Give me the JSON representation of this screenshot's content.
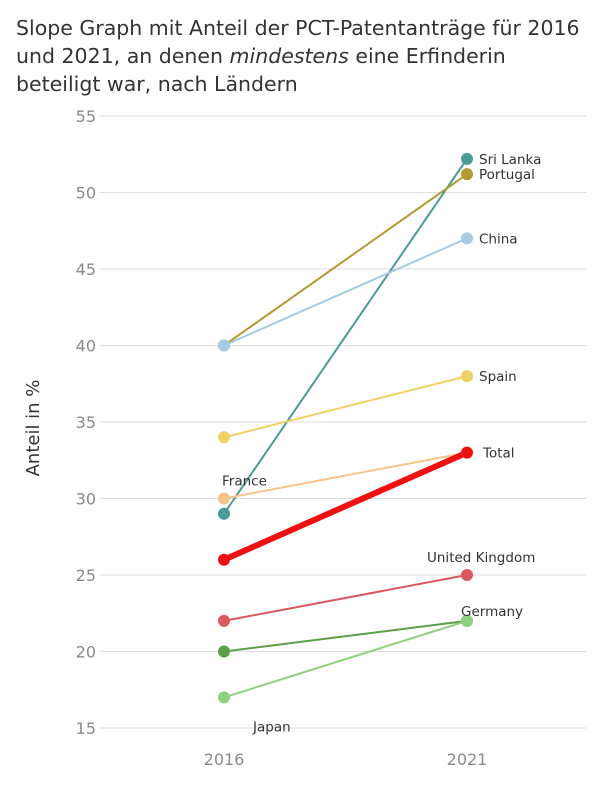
{
  "title": {
    "prefix": "Slope Graph mit Anteil der PCT-Patentanträge für 2016 und 2021, an denen ",
    "emphasis": "mindestens",
    "suffix": " eine Erfinderin beteiligt war, nach Ländern"
  },
  "chart_data": {
    "type": "line",
    "subtype": "slope",
    "x": [
      "2016",
      "2021"
    ],
    "ylabel": "Anteil in %",
    "xlabel": "",
    "ylim": [
      15,
      55
    ],
    "yticks": [
      15,
      20,
      25,
      30,
      35,
      40,
      45,
      50,
      55
    ],
    "grid": true,
    "series": [
      {
        "name": "Sri Lanka",
        "values": [
          29,
          52.2
        ],
        "color": "#4a9b94"
      },
      {
        "name": "Portugal",
        "values": [
          40,
          51.2
        ],
        "color": "#b39a34"
      },
      {
        "name": "China",
        "values": [
          40,
          47
        ],
        "color": "#a6cbe3"
      },
      {
        "name": "Spain",
        "values": [
          34,
          38
        ],
        "color": "#efd067"
      },
      {
        "name": "France",
        "values": [
          30,
          33
        ],
        "color": "#f5c48a"
      },
      {
        "name": "Total",
        "values": [
          26,
          33
        ],
        "color": "#ee1111"
      },
      {
        "name": "United Kingdom",
        "values": [
          22,
          25
        ],
        "color": "#d9595f"
      },
      {
        "name": "Germany",
        "values": [
          20,
          22
        ],
        "color": "#5c9f4a"
      },
      {
        "name": "Japan",
        "values": [
          17,
          22
        ],
        "color": "#8fd07e"
      }
    ]
  }
}
